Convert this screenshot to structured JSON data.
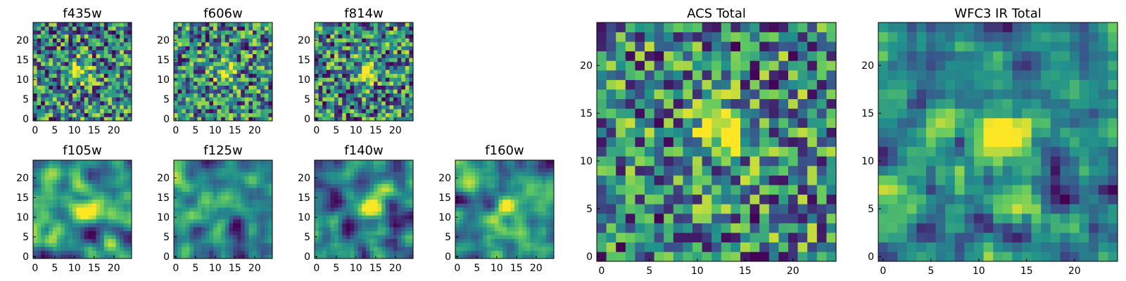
{
  "chart_data": [
    {
      "id": "f435w",
      "type": "heatmap",
      "title": "f435w",
      "grid_size": [
        25,
        25
      ],
      "x_ticks": [
        0,
        5,
        10,
        15,
        20
      ],
      "y_ticks": [
        0,
        5,
        10,
        15,
        20
      ],
      "xlim": [
        -0.5,
        24.5
      ],
      "ylim": [
        -0.5,
        24.5
      ],
      "colormap": "viridis",
      "source_peak": [
        12,
        12
      ],
      "smoothness": 0
    },
    {
      "id": "f606w",
      "type": "heatmap",
      "title": "f606w",
      "grid_size": [
        25,
        25
      ],
      "x_ticks": [
        0,
        5,
        10,
        15,
        20
      ],
      "y_ticks": [
        0,
        5,
        10,
        15,
        20
      ],
      "xlim": [
        -0.5,
        24.5
      ],
      "ylim": [
        -0.5,
        24.5
      ],
      "colormap": "viridis",
      "source_peak": [
        13,
        12
      ],
      "smoothness": 0
    },
    {
      "id": "f814w",
      "type": "heatmap",
      "title": "f814w",
      "grid_size": [
        25,
        25
      ],
      "x_ticks": [
        0,
        5,
        10,
        15,
        20
      ],
      "y_ticks": [
        0,
        5,
        10,
        15,
        20
      ],
      "xlim": [
        -0.5,
        24.5
      ],
      "ylim": [
        -0.5,
        24.5
      ],
      "colormap": "viridis",
      "source_peak": [
        13,
        12
      ],
      "smoothness": 0
    },
    {
      "id": "f105w",
      "type": "heatmap",
      "title": "f105w",
      "grid_size": [
        25,
        25
      ],
      "x_ticks": [
        0,
        5,
        10,
        15,
        20
      ],
      "y_ticks": [
        0,
        5,
        10,
        15,
        20
      ],
      "xlim": [
        -0.5,
        24.5
      ],
      "ylim": [
        -0.5,
        24.5
      ],
      "colormap": "viridis",
      "source_peak": [
        13,
        12
      ],
      "smoothness": 2
    },
    {
      "id": "f125w",
      "type": "heatmap",
      "title": "f125w",
      "grid_size": [
        25,
        25
      ],
      "x_ticks": [
        0,
        5,
        10,
        15,
        20
      ],
      "y_ticks": [
        0,
        5,
        10,
        15,
        20
      ],
      "xlim": [
        -0.5,
        24.5
      ],
      "ylim": [
        -0.5,
        24.5
      ],
      "colormap": "viridis",
      "source_peak": [
        12,
        14
      ],
      "smoothness": 2
    },
    {
      "id": "f140w",
      "type": "heatmap",
      "title": "f140w",
      "grid_size": [
        25,
        25
      ],
      "x_ticks": [
        0,
        5,
        10,
        15,
        20
      ],
      "y_ticks": [
        0,
        5,
        10,
        15,
        20
      ],
      "xlim": [
        -0.5,
        24.5
      ],
      "ylim": [
        -0.5,
        24.5
      ],
      "colormap": "viridis",
      "source_peak": [
        13,
        13
      ],
      "smoothness": 2
    },
    {
      "id": "f160w",
      "type": "heatmap",
      "title": "f160w",
      "grid_size": [
        25,
        25
      ],
      "x_ticks": [
        0,
        5,
        10,
        15,
        20
      ],
      "y_ticks": [
        0,
        5,
        10,
        15,
        20
      ],
      "xlim": [
        -0.5,
        24.5
      ],
      "ylim": [
        -0.5,
        24.5
      ],
      "colormap": "viridis",
      "source_peak": [
        13,
        13
      ],
      "smoothness": 2
    },
    {
      "id": "acs-total",
      "type": "heatmap",
      "title": "ACS Total",
      "grid_size": [
        25,
        25
      ],
      "x_ticks": [
        0,
        5,
        10,
        15,
        20
      ],
      "y_ticks": [
        0,
        5,
        10,
        15,
        20
      ],
      "xlim": [
        -0.5,
        24.5
      ],
      "ylim": [
        -0.5,
        24.5
      ],
      "colormap": "viridis",
      "source_peak": [
        12,
        13
      ],
      "smoothness": 0
    },
    {
      "id": "wfc3-ir-total",
      "type": "heatmap",
      "title": "WFC3 IR Total",
      "grid_size": [
        25,
        25
      ],
      "x_ticks": [
        0,
        5,
        10,
        15,
        20
      ],
      "y_ticks": [
        0,
        5,
        10,
        15,
        20
      ],
      "xlim": [
        -0.5,
        24.5
      ],
      "ylim": [
        -0.5,
        24.5
      ],
      "colormap": "viridis",
      "source_peak": [
        12,
        13
      ],
      "smoothness": 1
    }
  ]
}
